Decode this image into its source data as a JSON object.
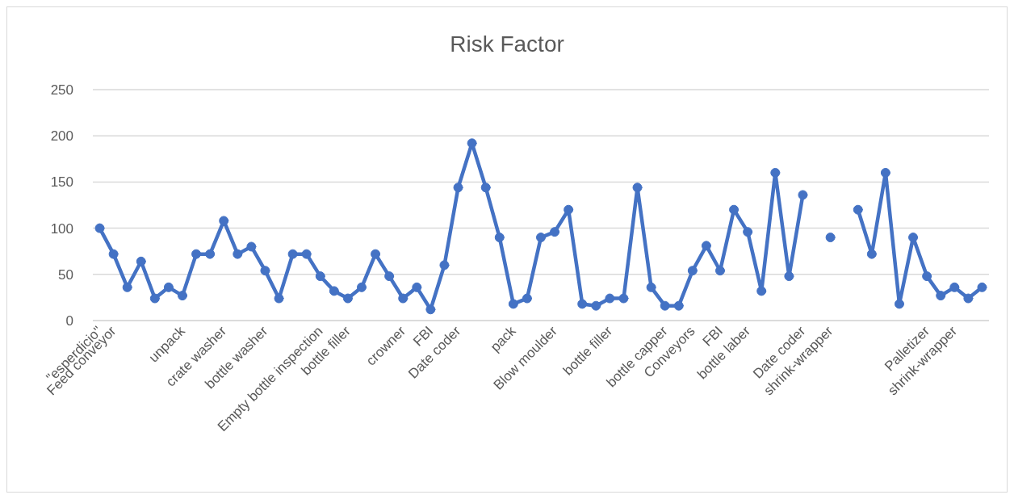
{
  "chart_data": {
    "type": "line",
    "title": "Risk Factor",
    "categories": [
      "\"esperdicio\"",
      "Feed conveyor",
      null,
      null,
      null,
      null,
      "unpack",
      null,
      null,
      "crate washer",
      null,
      null,
      "bottle washer",
      null,
      null,
      null,
      "Empty bottle inspection",
      null,
      "bottle filler",
      null,
      null,
      null,
      "crowner",
      null,
      "FBI",
      null,
      "Date coder",
      null,
      null,
      null,
      "pack",
      null,
      null,
      "Blow moulder",
      null,
      null,
      null,
      "bottle filler",
      null,
      null,
      null,
      "bottle capper",
      null,
      "Conveyors",
      null,
      "FBI",
      null,
      "bottle laber",
      null,
      null,
      null,
      "Date coder",
      null,
      "shrink-wrapper",
      null,
      null,
      null,
      null,
      null,
      null,
      "Palletizer",
      null,
      "shrink-wrapper",
      null,
      null
    ],
    "series": [
      {
        "color": "#4472c4",
        "values": [
          100,
          72,
          36,
          64,
          24,
          36,
          27,
          72,
          72,
          108,
          72,
          80,
          54,
          24,
          72,
          72,
          48,
          32,
          24,
          36,
          72,
          48,
          24,
          36,
          12,
          60,
          144,
          192,
          144,
          90,
          18,
          24,
          90,
          96,
          120,
          18,
          16,
          24,
          24,
          144,
          36,
          16,
          16,
          54,
          81,
          54,
          120,
          96,
          32,
          160,
          48,
          136,
          null,
          90,
          null,
          120,
          72,
          160,
          18,
          90,
          48,
          27,
          36,
          24,
          36
        ]
      }
    ],
    "ylim": [
      0,
      250
    ],
    "yticks": [
      0,
      50,
      100,
      150,
      200,
      250
    ],
    "grid": "y",
    "marker": "circle",
    "line_style": "solid"
  }
}
